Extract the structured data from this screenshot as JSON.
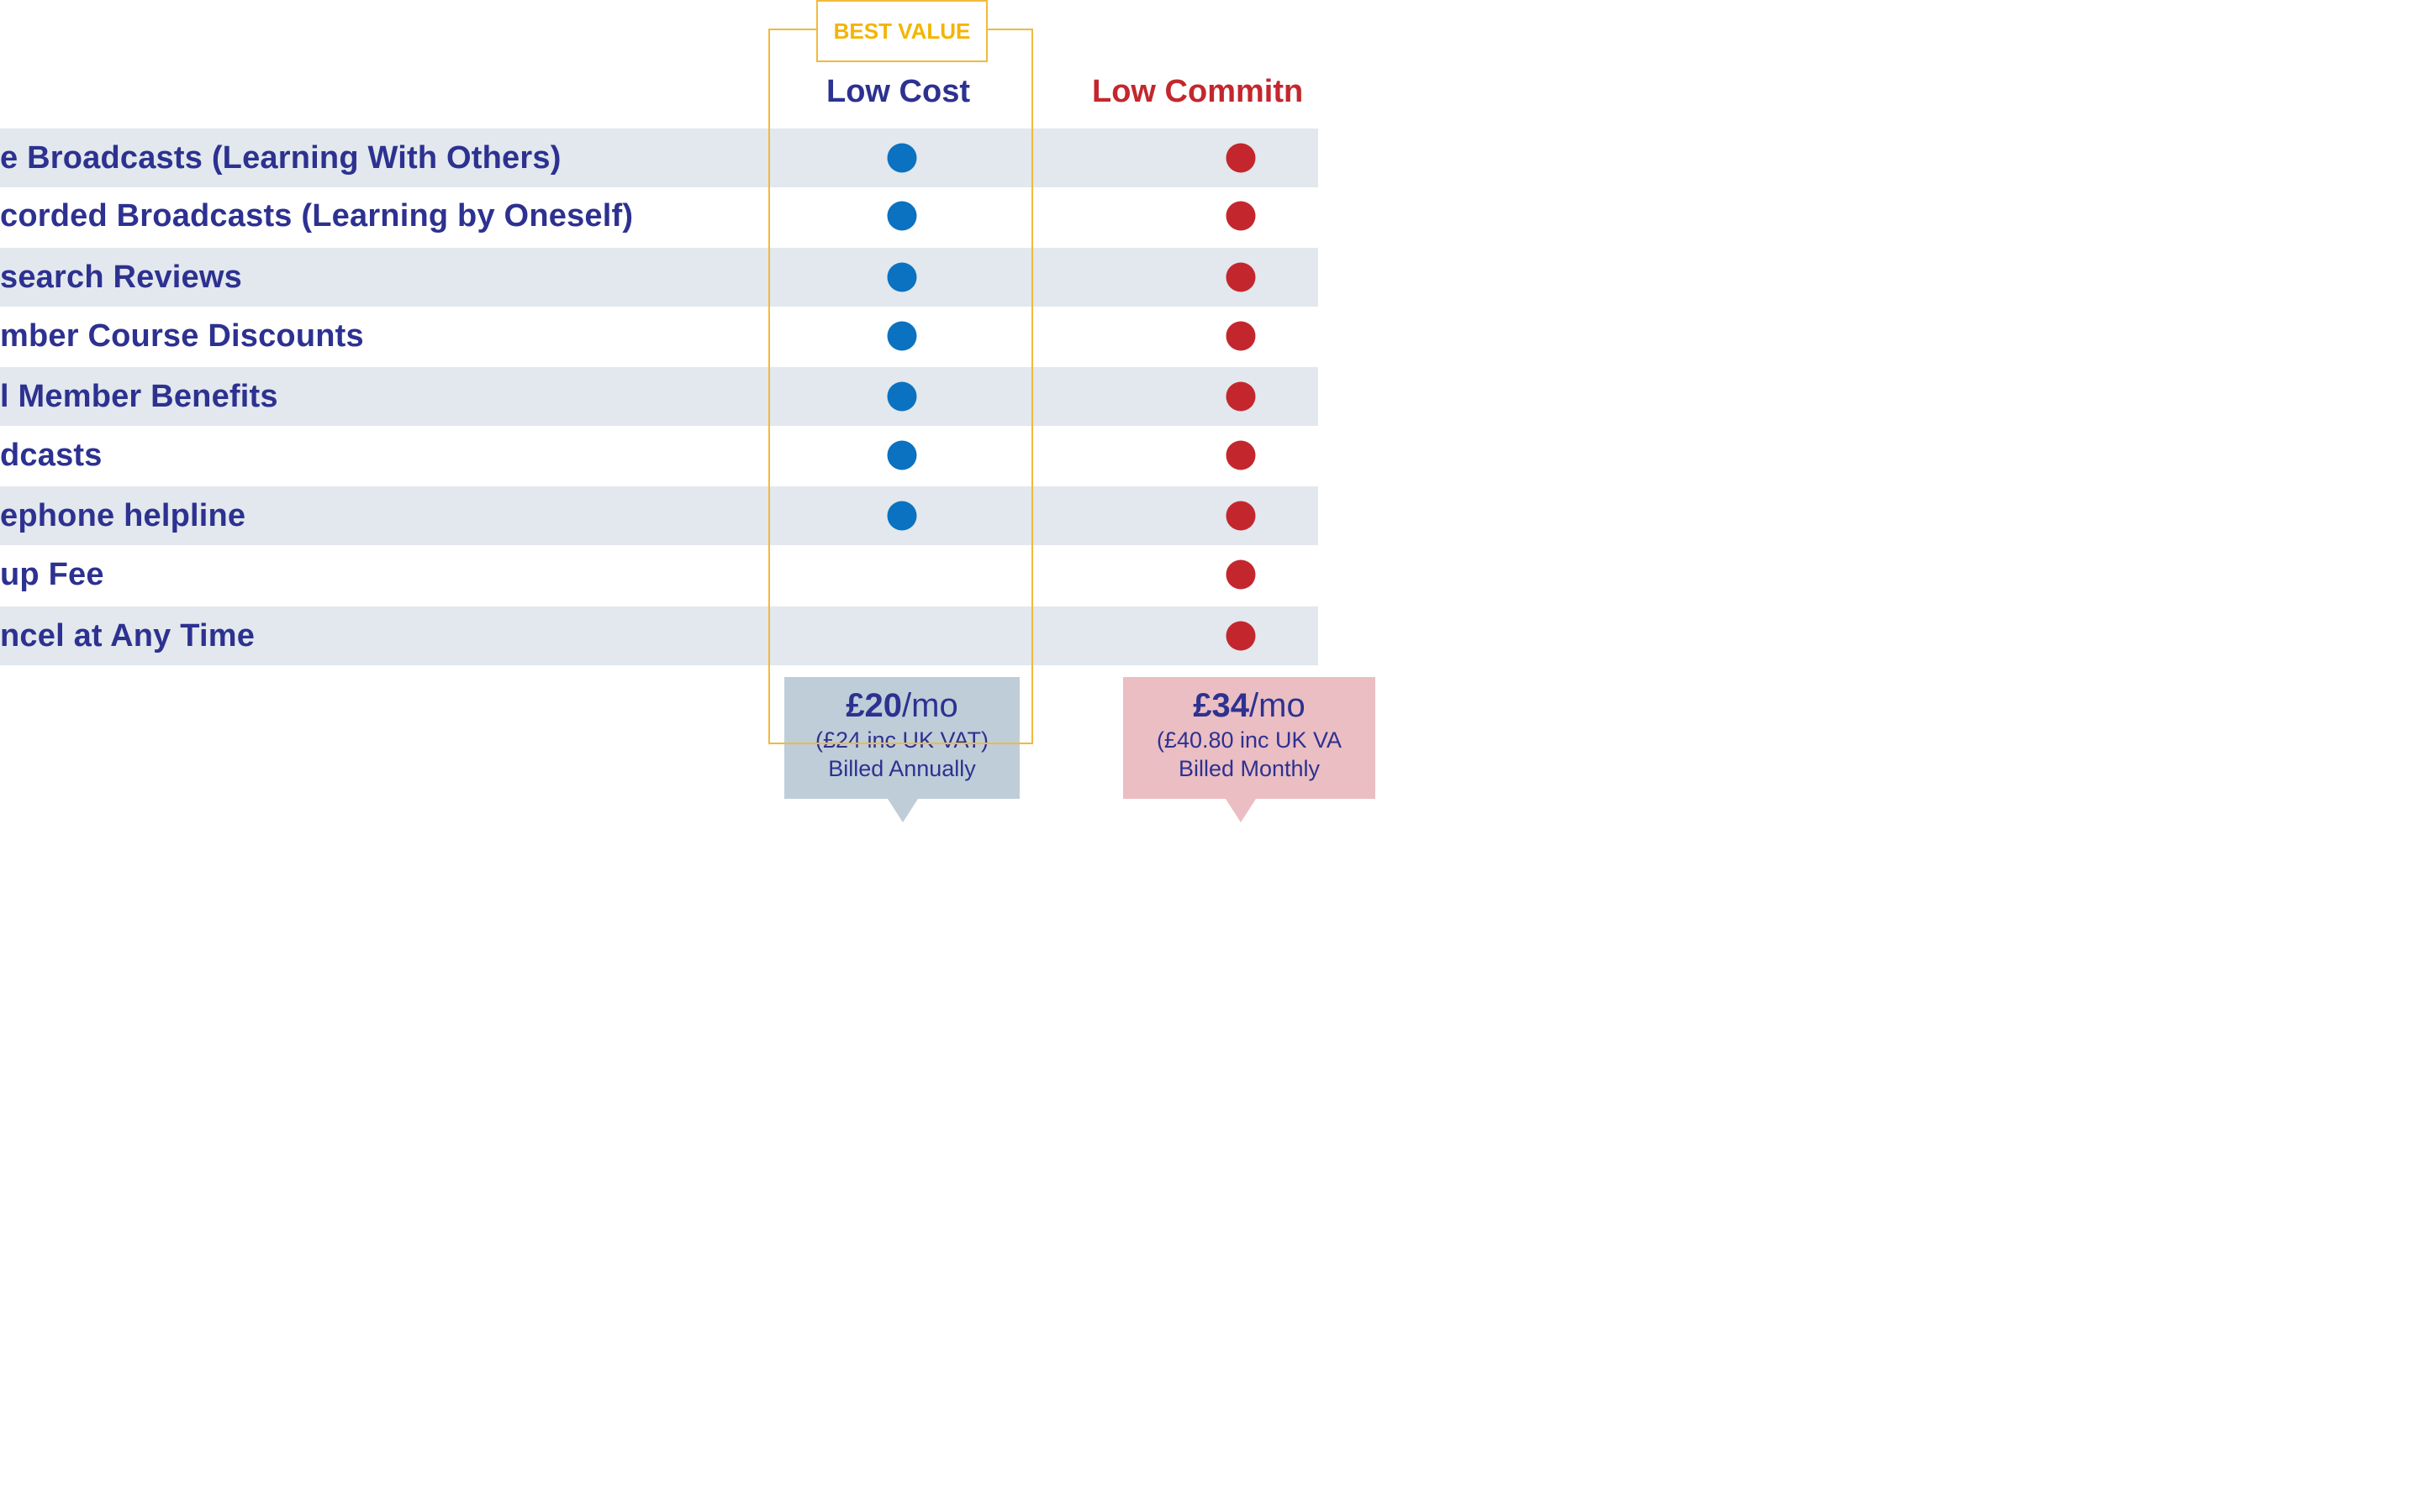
{
  "badge": {
    "label": "BEST VALUE"
  },
  "columns": {
    "low_cost": {
      "title": "Low Cost"
    },
    "low_commitment": {
      "title": "Low Commitn"
    }
  },
  "rows": [
    {
      "label": "e Broadcasts  (Learning With Others)",
      "low_cost": true,
      "low_commitment": true
    },
    {
      "label": "corded Broadcasts  (Learning by Oneself)",
      "low_cost": true,
      "low_commitment": true
    },
    {
      "label": "search Reviews",
      "low_cost": true,
      "low_commitment": true
    },
    {
      "label": "mber Course Discounts",
      "low_cost": true,
      "low_commitment": true
    },
    {
      "label": "l Member Benefits",
      "low_cost": true,
      "low_commitment": true
    },
    {
      "label": "dcasts",
      "low_cost": true,
      "low_commitment": true
    },
    {
      "label": "ephone helpline",
      "low_cost": true,
      "low_commitment": true
    },
    {
      "label": "up Fee",
      "low_cost": false,
      "low_commitment": true
    },
    {
      "label": "ncel at Any Time",
      "low_cost": false,
      "low_commitment": true
    }
  ],
  "prices": {
    "annual": {
      "amount": "£20",
      "unit": "/mo",
      "vat": "(£24 inc UK VAT)",
      "billing": "Billed Annually"
    },
    "monthly": {
      "amount": "£34",
      "unit": "/mo",
      "vat": "(£40.80 inc UK VA",
      "billing": "Billed Monthly"
    }
  },
  "colors": {
    "navy": "#2d3190",
    "blue_dot": "#0a72c0",
    "red": "#c3272d",
    "gold": "#f2b93b",
    "row_shade": "#e2e8ed",
    "annual_box": "#bfcdd8",
    "monthly_box": "#eabec3"
  }
}
